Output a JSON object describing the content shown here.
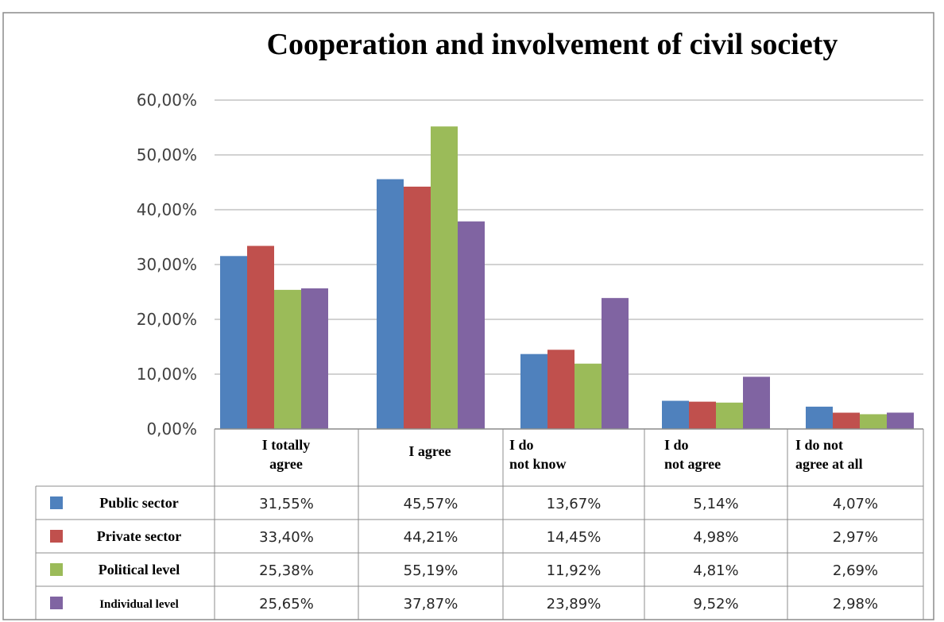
{
  "chart_data": {
    "type": "bar",
    "title": "Cooperation and involvement of civil society",
    "categories": [
      [
        "I totally",
        "agree"
      ],
      [
        "I agree"
      ],
      [
        "I do",
        "not know"
      ],
      [
        "I do",
        "not agree"
      ],
      [
        "I do not",
        "agree at all"
      ]
    ],
    "y_ticks": [
      "0,00%",
      "10,00%",
      "20,00%",
      "30,00%",
      "40,00%",
      "50,00%",
      "60,00%"
    ],
    "ylim": [
      0,
      60
    ],
    "grid": true,
    "legend": "data-table",
    "series": [
      {
        "name": "Public sector",
        "color": "#4F81BD",
        "values": [
          31.55,
          45.57,
          13.67,
          5.14,
          4.07
        ],
        "labels": [
          "31,55%",
          "45,57%",
          "13,67%",
          "5,14%",
          "4,07%"
        ]
      },
      {
        "name": "Private sector",
        "color": "#C0504D",
        "values": [
          33.4,
          44.21,
          14.45,
          4.98,
          2.97
        ],
        "labels": [
          "33,40%",
          "44,21%",
          "14,45%",
          "4,98%",
          "2,97%"
        ]
      },
      {
        "name": "Political level",
        "color": "#9BBB59",
        "values": [
          25.38,
          55.19,
          11.92,
          4.81,
          2.69
        ],
        "labels": [
          "25,38%",
          "55,19%",
          "11,92%",
          "4,81%",
          "2,69%"
        ]
      },
      {
        "name": "Individual level",
        "color": "#8064A2",
        "values": [
          25.65,
          37.87,
          23.89,
          9.52,
          2.98
        ],
        "labels": [
          "25,65%",
          "37,87%",
          "23,89%",
          "9,52%",
          "2,98%"
        ]
      }
    ]
  }
}
